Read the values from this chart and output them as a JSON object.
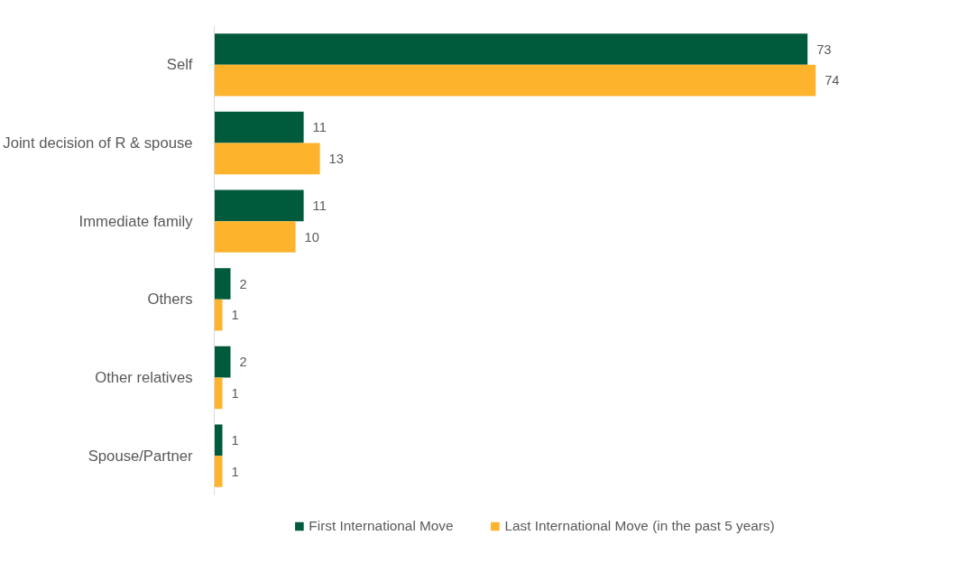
{
  "chart_data": {
    "type": "bar",
    "orientation": "horizontal",
    "categories": [
      "Self",
      "Joint decision of R & spouse",
      "Immediate family",
      "Others",
      "Other relatives",
      "Spouse/Partner"
    ],
    "series": [
      {
        "name": "First International Move",
        "color": "#005a3c",
        "values": [
          73,
          11,
          11,
          2,
          2,
          1
        ]
      },
      {
        "name": "Last International Move (in the past 5 years)",
        "color": "#fdb32b",
        "values": [
          74,
          13,
          10,
          1,
          1,
          1
        ]
      }
    ],
    "data_labels": true,
    "legend": "bottom",
    "grid": false
  }
}
